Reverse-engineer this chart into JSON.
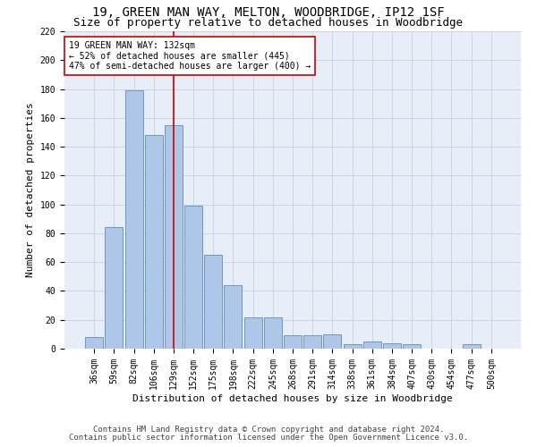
{
  "title_line1": "19, GREEN MAN WAY, MELTON, WOODBRIDGE, IP12 1SF",
  "title_line2": "Size of property relative to detached houses in Woodbridge",
  "xlabel": "Distribution of detached houses by size in Woodbridge",
  "ylabel": "Number of detached properties",
  "footer_line1": "Contains HM Land Registry data © Crown copyright and database right 2024.",
  "footer_line2": "Contains public sector information licensed under the Open Government Licence v3.0.",
  "bar_labels": [
    "36sqm",
    "59sqm",
    "82sqm",
    "106sqm",
    "129sqm",
    "152sqm",
    "175sqm",
    "198sqm",
    "222sqm",
    "245sqm",
    "268sqm",
    "291sqm",
    "314sqm",
    "338sqm",
    "361sqm",
    "384sqm",
    "407sqm",
    "430sqm",
    "454sqm",
    "477sqm",
    "500sqm"
  ],
  "bar_values": [
    8,
    84,
    179,
    148,
    155,
    99,
    65,
    44,
    22,
    22,
    9,
    9,
    10,
    3,
    5,
    4,
    3,
    0,
    0,
    3,
    0
  ],
  "bar_color": "#aec6e8",
  "bar_edge_color": "#5a8fc2",
  "annotation_text": "19 GREEN MAN WAY: 132sqm\n← 52% of detached houses are smaller (445)\n47% of semi-detached houses are larger (400) →",
  "annotation_box_color": "#ffffff",
  "annotation_box_edgecolor": "#cc0000",
  "vline_color": "#cc0000",
  "vline_index": 4,
  "ylim": [
    0,
    220
  ],
  "yticks": [
    0,
    20,
    40,
    60,
    80,
    100,
    120,
    140,
    160,
    180,
    200,
    220
  ],
  "grid_color": "#c8d0e0",
  "background_color": "#e8eef8",
  "title_fontsize": 10,
  "subtitle_fontsize": 9,
  "axis_label_fontsize": 8,
  "tick_fontsize": 7,
  "annotation_fontsize": 7,
  "footer_fontsize": 6.5
}
